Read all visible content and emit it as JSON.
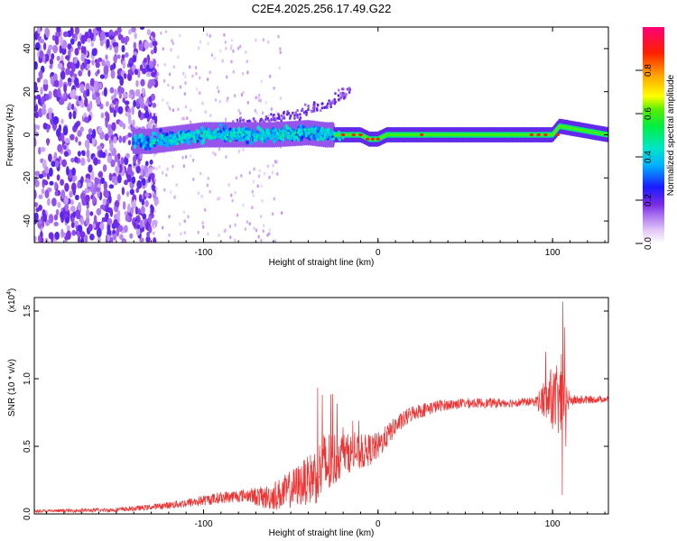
{
  "figure_title": "C2E4.2025.256.17.49.G22",
  "chart_data": [
    {
      "type": "heatmap",
      "title": "C2E4.2025.256.17.49.G22",
      "xlabel": "Height of straight line (km)",
      "ylabel": "Frequency (Hz)",
      "xlim": [
        -197,
        132
      ],
      "ylim": [
        -50,
        50
      ],
      "xticks": [
        -100,
        0,
        100
      ],
      "xtick_labels": [
        "-100",
        "0",
        "100"
      ],
      "yticks": [
        -40,
        -20,
        0,
        20,
        40
      ],
      "ytick_labels": [
        "-40",
        "-20",
        "0",
        "20",
        "40"
      ],
      "colorbar": {
        "label": "Normalized spectral amplitude",
        "range": [
          0.0,
          1.0
        ],
        "ticks": [
          0.0,
          0.2,
          0.4,
          0.6,
          0.8
        ],
        "tick_labels": [
          "0.0",
          "0.2",
          "0.4",
          "0.6",
          "0.8"
        ]
      },
      "ridge_center_hz": [
        {
          "x": -130,
          "y": -3
        },
        {
          "x": -100,
          "y": 0
        },
        {
          "x": -60,
          "y": 0
        },
        {
          "x": -40,
          "y": 1
        },
        {
          "x": -30,
          "y": 0
        },
        {
          "x": -10,
          "y": 0
        },
        {
          "x": -5,
          "y": -2
        },
        {
          "x": 0,
          "y": -2
        },
        {
          "x": 5,
          "y": 0
        },
        {
          "x": 100,
          "y": 0
        },
        {
          "x": 104,
          "y": 4
        },
        {
          "x": 132,
          "y": 0
        }
      ],
      "upper_branch_hz": [
        {
          "x": -80,
          "y": 5
        },
        {
          "x": -60,
          "y": 7
        },
        {
          "x": -40,
          "y": 11
        },
        {
          "x": -25,
          "y": 16
        },
        {
          "x": -17,
          "y": 21
        }
      ]
    },
    {
      "type": "line",
      "title": "",
      "xlabel": "Height of straight line (km)",
      "ylabel": "SNR (10 * v/v)",
      "y_scale_label": "(x10",
      "y_scale_exponent": "4",
      "y_scale_close": ")",
      "xlim": [
        -197,
        132
      ],
      "ylim": [
        0.0,
        1.6
      ],
      "xticks": [
        -100,
        0,
        100
      ],
      "xtick_labels": [
        "-100",
        "0",
        "100"
      ],
      "yticks": [
        0.0,
        0.5,
        1.0,
        1.5
      ],
      "ytick_labels": [
        "0.0",
        "0.5",
        "1.0",
        "1.5"
      ],
      "series": [
        {
          "name": "SNR",
          "color": "#ee3333",
          "envelope_base": [
            {
              "x": -197,
              "y": 0.02
            },
            {
              "x": -150,
              "y": 0.03
            },
            {
              "x": -130,
              "y": 0.05
            },
            {
              "x": -110,
              "y": 0.08
            },
            {
              "x": -90,
              "y": 0.12
            },
            {
              "x": -75,
              "y": 0.14
            },
            {
              "x": -65,
              "y": 0.12
            },
            {
              "x": -55,
              "y": 0.15
            },
            {
              "x": -40,
              "y": 0.25
            },
            {
              "x": -30,
              "y": 0.35
            },
            {
              "x": -20,
              "y": 0.45
            },
            {
              "x": -10,
              "y": 0.45
            },
            {
              "x": 0,
              "y": 0.5
            },
            {
              "x": 10,
              "y": 0.65
            },
            {
              "x": 20,
              "y": 0.75
            },
            {
              "x": 35,
              "y": 0.8
            },
            {
              "x": 50,
              "y": 0.82
            },
            {
              "x": 70,
              "y": 0.82
            },
            {
              "x": 90,
              "y": 0.83
            },
            {
              "x": 95,
              "y": 0.84
            },
            {
              "x": 110,
              "y": 0.84
            },
            {
              "x": 132,
              "y": 0.85
            }
          ],
          "noise_amplitude": [
            {
              "x": -197,
              "y": 0.01
            },
            {
              "x": -130,
              "y": 0.02
            },
            {
              "x": -100,
              "y": 0.04
            },
            {
              "x": -75,
              "y": 0.05
            },
            {
              "x": -40,
              "y": 0.18
            },
            {
              "x": -30,
              "y": 0.28
            },
            {
              "x": -20,
              "y": 0.15
            },
            {
              "x": -5,
              "y": 0.12
            },
            {
              "x": 10,
              "y": 0.07
            },
            {
              "x": 40,
              "y": 0.04
            },
            {
              "x": 90,
              "y": 0.03
            },
            {
              "x": 95,
              "y": 0.15
            },
            {
              "x": 105,
              "y": 0.3
            },
            {
              "x": 110,
              "y": 0.04
            },
            {
              "x": 132,
              "y": 0.02
            }
          ],
          "peaks": [
            {
              "x": -32,
              "y": 0.88
            },
            {
              "x": -20,
              "y": 0.64
            },
            {
              "x": 96,
              "y": 1.2
            },
            {
              "x": 99,
              "y": 1.07
            },
            {
              "x": 105,
              "y": 1.18
            },
            {
              "x": 106,
              "y": 1.57
            },
            {
              "x": 107,
              "y": 1.38
            }
          ],
          "dips": [
            {
              "x": 105.5,
              "y": 0.14
            },
            {
              "x": 107.5,
              "y": 0.5
            }
          ]
        }
      ]
    }
  ]
}
